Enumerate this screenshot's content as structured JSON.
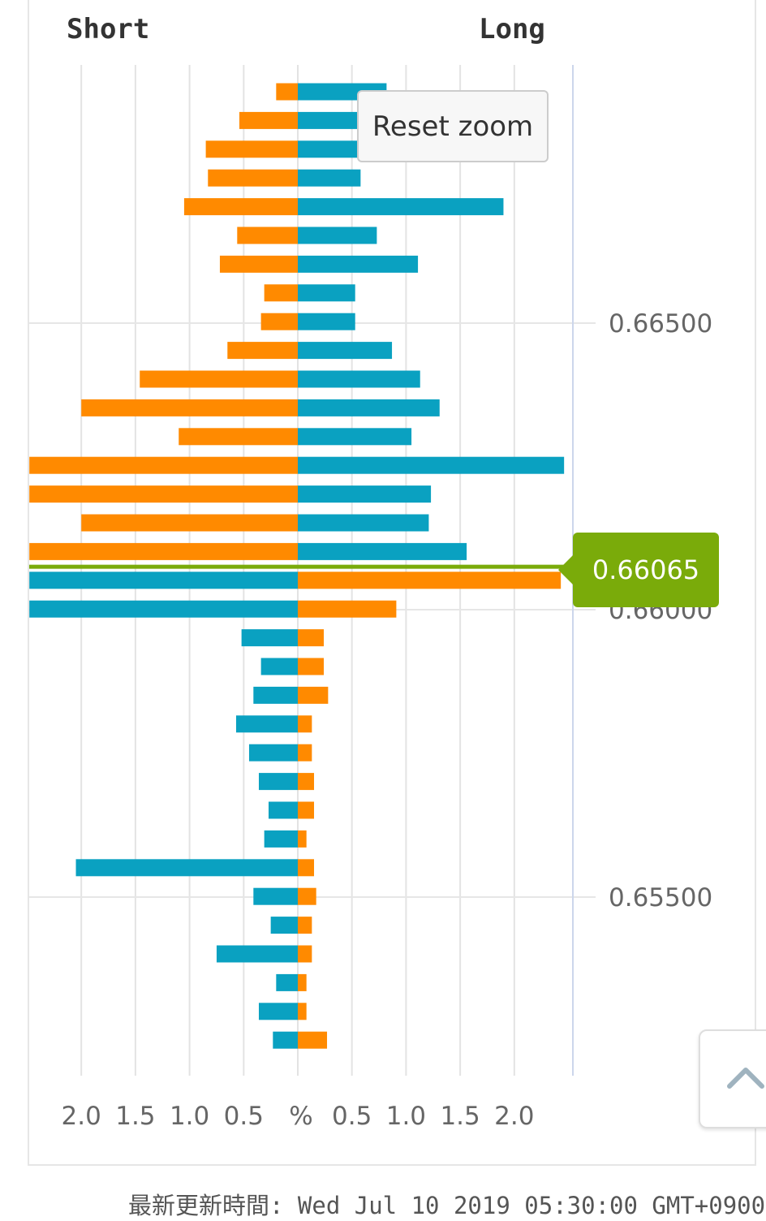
{
  "header": {
    "short_label": "Short",
    "long_label": "Long"
  },
  "reset_zoom_label": "Reset zoom",
  "current_price": {
    "value": 0.66065,
    "label": "0.66065"
  },
  "x_axis_center_label": "%",
  "updated_text": "最新更新時間: Wed Jul 10 2019 05:30:00 GMT+0900",
  "colors": {
    "blue": "#0aa1c1",
    "orange": "#ff8a00",
    "price_line": "#7aab0a",
    "grid": "#e3e3e3"
  },
  "scroll_top_icon": "chevron-up-icon",
  "chart_data": {
    "type": "bar",
    "orientation": "horizontal-butterfly",
    "x_ticks_left": [
      "2.0",
      "1.5",
      "1.0",
      "0.5"
    ],
    "x_ticks_right": [
      "0.5",
      "1.0",
      "1.5",
      "2.0"
    ],
    "y_ticks": [
      "0.66500",
      "0.66000",
      "0.65500"
    ],
    "grid": true,
    "rows": [
      {
        "left_color": "orange",
        "left": 0.2,
        "right_color": "blue",
        "right": 0.82
      },
      {
        "left_color": "orange",
        "left": 0.54,
        "right_color": "blue",
        "right": 0.55
      },
      {
        "left_color": "orange",
        "left": 0.85,
        "right_color": "blue",
        "right": 0.55
      },
      {
        "left_color": "orange",
        "left": 0.83,
        "right_color": "blue",
        "right": 0.58
      },
      {
        "left_color": "orange",
        "left": 1.05,
        "right_color": "blue",
        "right": 1.9
      },
      {
        "left_color": "orange",
        "left": 0.56,
        "right_color": "blue",
        "right": 0.73
      },
      {
        "left_color": "orange",
        "left": 0.72,
        "right_color": "blue",
        "right": 1.11
      },
      {
        "left_color": "orange",
        "left": 0.31,
        "right_color": "blue",
        "right": 0.53
      },
      {
        "left_color": "orange",
        "left": 0.34,
        "right_color": "blue",
        "right": 0.53
      },
      {
        "left_color": "orange",
        "left": 0.65,
        "right_color": "blue",
        "right": 0.87
      },
      {
        "left_color": "orange",
        "left": 1.46,
        "right_color": "blue",
        "right": 1.13
      },
      {
        "left_color": "orange",
        "left": 2.0,
        "right_color": "blue",
        "right": 1.31
      },
      {
        "left_color": "orange",
        "left": 1.1,
        "right_color": "blue",
        "right": 1.05
      },
      {
        "left_color": "orange",
        "left": 2.48,
        "right_color": "blue",
        "right": 2.46
      },
      {
        "left_color": "orange",
        "left": 2.48,
        "right_color": "blue",
        "right": 1.23
      },
      {
        "left_color": "orange",
        "left": 2.0,
        "right_color": "blue",
        "right": 1.21
      },
      {
        "left_color": "orange",
        "left": 2.48,
        "right_color": "blue",
        "right": 1.56
      },
      {
        "left_color": "blue",
        "left": 2.48,
        "right_color": "orange",
        "right": 2.43
      },
      {
        "left_color": "blue",
        "left": 2.48,
        "right_color": "orange",
        "right": 0.91
      },
      {
        "left_color": "blue",
        "left": 0.52,
        "right_color": "orange",
        "right": 0.24
      },
      {
        "left_color": "blue",
        "left": 0.34,
        "right_color": "orange",
        "right": 0.24
      },
      {
        "left_color": "blue",
        "left": 0.41,
        "right_color": "orange",
        "right": 0.28
      },
      {
        "left_color": "blue",
        "left": 0.57,
        "right_color": "orange",
        "right": 0.13
      },
      {
        "left_color": "blue",
        "left": 0.45,
        "right_color": "orange",
        "right": 0.13
      },
      {
        "left_color": "blue",
        "left": 0.36,
        "right_color": "orange",
        "right": 0.15
      },
      {
        "left_color": "blue",
        "left": 0.27,
        "right_color": "orange",
        "right": 0.15
      },
      {
        "left_color": "blue",
        "left": 0.31,
        "right_color": "orange",
        "right": 0.08
      },
      {
        "left_color": "blue",
        "left": 2.05,
        "right_color": "orange",
        "right": 0.15
      },
      {
        "left_color": "blue",
        "left": 0.41,
        "right_color": "orange",
        "right": 0.17
      },
      {
        "left_color": "blue",
        "left": 0.25,
        "right_color": "orange",
        "right": 0.13
      },
      {
        "left_color": "blue",
        "left": 0.75,
        "right_color": "orange",
        "right": 0.13
      },
      {
        "left_color": "blue",
        "left": 0.2,
        "right_color": "orange",
        "right": 0.08
      },
      {
        "left_color": "blue",
        "left": 0.36,
        "right_color": "orange",
        "right": 0.08
      },
      {
        "left_color": "blue",
        "left": 0.23,
        "right_color": "orange",
        "right": 0.27
      }
    ]
  }
}
